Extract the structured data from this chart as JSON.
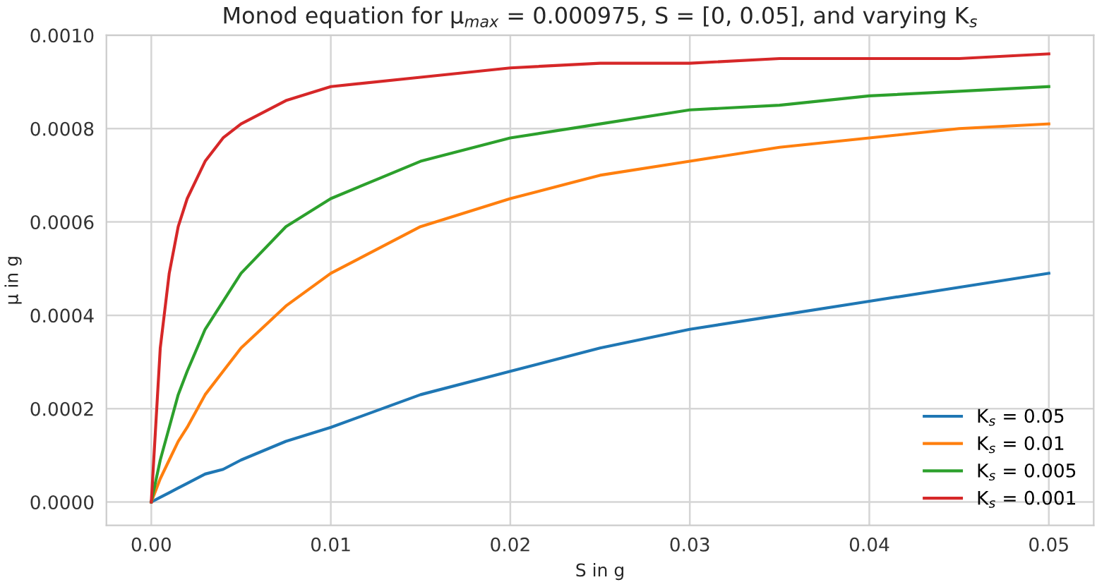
{
  "chart_data": {
    "type": "line",
    "title": "Monod equation for μ$_{max}$ = 0.000975, S = [0, 0.05], and varying K$_{s}$",
    "xlabel": "S in g",
    "ylabel": "μ in g",
    "x": [
      0,
      0.0005,
      0.001,
      0.0015,
      0.002,
      0.003,
      0.004,
      0.005,
      0.0075,
      0.01,
      0.015,
      0.02,
      0.025,
      0.03,
      0.035,
      0.04,
      0.045,
      0.05
    ],
    "series": [
      {
        "name": "K$_{s}$ = 0.05",
        "color": "#1f77b4",
        "values": [
          0,
          1e-05,
          2e-05,
          3e-05,
          4e-05,
          6e-05,
          7e-05,
          9e-05,
          0.00013,
          0.00016,
          0.00023,
          0.00028,
          0.00033,
          0.00037,
          0.0004,
          0.00043,
          0.00046,
          0.00049
        ]
      },
      {
        "name": "K$_{s}$ = 0.01",
        "color": "#ff7f0e",
        "values": [
          0,
          5e-05,
          9e-05,
          0.00013,
          0.00016,
          0.00023,
          0.00028,
          0.00033,
          0.00042,
          0.00049,
          0.00059,
          0.00065,
          0.0007,
          0.00073,
          0.00076,
          0.00078,
          0.0008,
          0.00081
        ]
      },
      {
        "name": "K$_{s}$ = 0.005",
        "color": "#2ca02c",
        "values": [
          0,
          9e-05,
          0.00016,
          0.00023,
          0.00028,
          0.00037,
          0.00043,
          0.00049,
          0.00059,
          0.00065,
          0.00073,
          0.00078,
          0.00081,
          0.00084,
          0.00085,
          0.00087,
          0.00088,
          0.00089
        ]
      },
      {
        "name": "K$_{s}$ = 0.001",
        "color": "#d62728",
        "values": [
          0,
          0.00033,
          0.00049,
          0.00059,
          0.00065,
          0.00073,
          0.00078,
          0.00081,
          0.00086,
          0.00089,
          0.00091,
          0.00093,
          0.00094,
          0.00094,
          0.00095,
          0.00095,
          0.00095,
          0.00096
        ]
      }
    ],
    "xlim": [
      -0.0025,
      0.0525
    ],
    "xticks": [
      {
        "value": 0,
        "label": "0.00"
      },
      0.01,
      0.02,
      0.03,
      0.04,
      0.05
    ],
    "ylim": [
      -5e-05,
      0.001
    ],
    "yticks": [
      {
        "value": 0,
        "label": "0.0000"
      },
      {
        "value": 0.0002,
        "label": "0.0002"
      },
      {
        "value": 0.0004,
        "label": "0.0004"
      },
      {
        "value": 0.0006,
        "label": "0.0006"
      },
      {
        "value": 0.0008,
        "label": "0.0008"
      },
      {
        "value": 0.001,
        "label": "0.0010"
      }
    ],
    "grid": true,
    "legend": "bottom right",
    "marker": "none",
    "line_style": "solid"
  }
}
